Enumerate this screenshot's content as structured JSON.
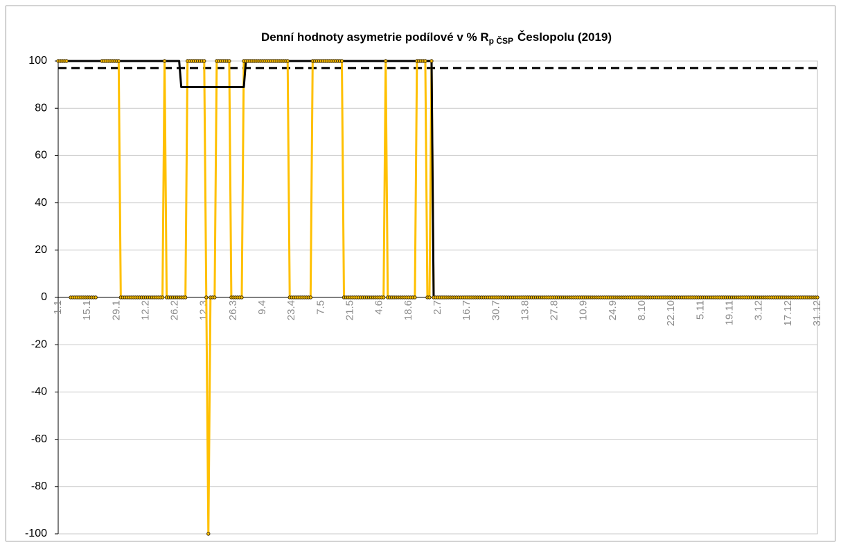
{
  "chart_data": {
    "type": "line",
    "title": "Denní hodnoty asymetrie podílové v % R",
    "title_subscript": "p ČSP",
    "title_suffix": "Česlopolu (2019)",
    "categories": [
      "1.1",
      null,
      null,
      null,
      null,
      null,
      null,
      null,
      null,
      null,
      null,
      null,
      null,
      null,
      "15.1",
      null,
      null,
      null,
      null,
      null,
      null,
      null,
      null,
      null,
      null,
      null,
      null,
      null,
      "29.1",
      null,
      null,
      null,
      null,
      null,
      null,
      null,
      null,
      null,
      null,
      null,
      null,
      null,
      "12.2",
      null,
      null,
      null,
      null,
      null,
      null,
      null,
      null,
      null,
      null,
      null,
      null,
      null,
      "26.2",
      null,
      null,
      null,
      null,
      null,
      null,
      null,
      null,
      null,
      null,
      null,
      null,
      null,
      "12.3",
      null,
      null,
      null,
      null,
      null,
      null,
      null,
      null,
      null,
      null,
      null,
      null,
      null,
      "26.3",
      null,
      null,
      null,
      null,
      null,
      null,
      null,
      null,
      null,
      null,
      null,
      null,
      null,
      "9.4",
      null,
      null,
      null,
      null,
      null,
      null,
      null,
      null,
      null,
      null,
      null,
      null,
      null,
      "23.4",
      null,
      null,
      null,
      null,
      null,
      null,
      null,
      null,
      null,
      null,
      null,
      null,
      null,
      "7.5",
      null,
      null,
      null,
      null,
      null,
      null,
      null,
      null,
      null,
      null,
      null,
      null,
      null,
      "21.5",
      null,
      null,
      null,
      null,
      null,
      null,
      null,
      null,
      null,
      null,
      null,
      null,
      null,
      "4.6",
      null,
      null,
      null,
      null,
      null,
      null,
      null,
      null,
      null,
      null,
      null,
      null,
      null,
      "18.6",
      null,
      null,
      null,
      null,
      null,
      null,
      null,
      null,
      null,
      null,
      null,
      null,
      null,
      "2.7",
      null,
      null,
      null,
      null,
      null,
      null,
      null,
      null,
      null,
      null,
      null,
      null,
      null,
      "16.7",
      null,
      null,
      null,
      null,
      null,
      null,
      null,
      null,
      null,
      null,
      null,
      null,
      null,
      "30.7",
      null,
      null,
      null,
      null,
      null,
      null,
      null,
      null,
      null,
      null,
      null,
      null,
      null,
      "13.8",
      null,
      null,
      null,
      null,
      null,
      null,
      null,
      null,
      null,
      null,
      null,
      null,
      null,
      "27.8",
      null,
      null,
      null,
      null,
      null,
      null,
      null,
      null,
      null,
      null,
      null,
      null,
      null,
      "10.9",
      null,
      null,
      null,
      null,
      null,
      null,
      null,
      null,
      null,
      null,
      null,
      null,
      null,
      "24.9",
      null,
      null,
      null,
      null,
      null,
      null,
      null,
      null,
      null,
      null,
      null,
      null,
      null,
      "8.10",
      null,
      null,
      null,
      null,
      null,
      null,
      null,
      null,
      null,
      null,
      null,
      null,
      null,
      "22.10",
      null,
      null,
      null,
      null,
      null,
      null,
      null,
      null,
      null,
      null,
      null,
      null,
      null,
      "5.11",
      null,
      null,
      null,
      null,
      null,
      null,
      null,
      null,
      null,
      null,
      null,
      null,
      null,
      "19.11",
      null,
      null,
      null,
      null,
      null,
      null,
      null,
      null,
      null,
      null,
      null,
      null,
      null,
      "3.12",
      null,
      null,
      null,
      null,
      null,
      null,
      null,
      null,
      null,
      null,
      null,
      null,
      null,
      "17.12",
      null,
      null,
      null,
      null,
      null,
      null,
      null,
      null,
      null,
      null,
      null,
      null,
      null,
      "31.12"
    ],
    "series": [
      {
        "color": "#ffc000",
        "markers": true,
        "values": [
          100,
          100,
          100,
          100,
          100,
          null,
          0,
          0,
          0,
          0,
          0,
          0,
          0,
          0,
          0,
          0,
          0,
          0,
          0,
          null,
          null,
          100,
          100,
          100,
          100,
          100,
          100,
          100,
          100,
          100,
          0,
          0,
          0,
          0,
          0,
          0,
          0,
          0,
          0,
          0,
          0,
          0,
          0,
          0,
          0,
          0,
          0,
          0,
          0,
          0,
          0,
          100,
          0,
          0,
          0,
          0,
          0,
          0,
          0,
          0,
          0,
          0,
          100,
          100,
          100,
          100,
          100,
          100,
          100,
          100,
          100,
          0,
          -100,
          0,
          0,
          0,
          100,
          100,
          100,
          100,
          100,
          100,
          100,
          0,
          0,
          0,
          0,
          0,
          0,
          100,
          100,
          100,
          100,
          100,
          100,
          100,
          100,
          100,
          100,
          100,
          100,
          100,
          100,
          100,
          100,
          100,
          100,
          100,
          100,
          100,
          100,
          0,
          0,
          0,
          0,
          0,
          0,
          0,
          0,
          0,
          0,
          0,
          100,
          100,
          100,
          100,
          100,
          100,
          100,
          100,
          100,
          100,
          100,
          100,
          100,
          100,
          100,
          0,
          0,
          0,
          0,
          0,
          0,
          0,
          0,
          0,
          0,
          0,
          0,
          0,
          0,
          0,
          0,
          0,
          0,
          0,
          0,
          100,
          0,
          0,
          0,
          0,
          0,
          0,
          0,
          0,
          0,
          0,
          0,
          0,
          0,
          0,
          100,
          100,
          100,
          100,
          100,
          0,
          0,
          100,
          0,
          0,
          0,
          0,
          0,
          0,
          0,
          0,
          0,
          0,
          0,
          0,
          0,
          0,
          0,
          0,
          0,
          0,
          0,
          0,
          0,
          0,
          0,
          0,
          0,
          0,
          0,
          0,
          0,
          0,
          0,
          0,
          0,
          0,
          0,
          0,
          0,
          0,
          0,
          0,
          0,
          0,
          0,
          0,
          0,
          0,
          0,
          0,
          0,
          0,
          0,
          0,
          0,
          0,
          0,
          0,
          0,
          0,
          0,
          0,
          0,
          0,
          0,
          0,
          0,
          0,
          0,
          0,
          0,
          0,
          0,
          0,
          0,
          0,
          0,
          0,
          0,
          0,
          0,
          0,
          0,
          0,
          0,
          0,
          0,
          0,
          0,
          0,
          0,
          0,
          0,
          0,
          0,
          0,
          0,
          0,
          0,
          0,
          0,
          0,
          0,
          0,
          0,
          0,
          0,
          0,
          0,
          0,
          0,
          0,
          0,
          0,
          0,
          0,
          0,
          0,
          0,
          0,
          0,
          0,
          0,
          0,
          0,
          0,
          0,
          0,
          0,
          0,
          0,
          0,
          0,
          0,
          0,
          0,
          0,
          0,
          0,
          0,
          0,
          0,
          0,
          0,
          0,
          0,
          0,
          0,
          0,
          0,
          0,
          0,
          0,
          0,
          0,
          0,
          0,
          0,
          0,
          0,
          0,
          0,
          0,
          0,
          0,
          0,
          0,
          0,
          0,
          0,
          0,
          0,
          0,
          0,
          0,
          0,
          0,
          0,
          0,
          0,
          0,
          0,
          0,
          0,
          0,
          0,
          0
        ]
      },
      {
        "color": "#000000",
        "markers": false,
        "values": [
          100,
          100,
          100,
          100,
          100,
          100,
          100,
          100,
          100,
          100,
          100,
          100,
          100,
          100,
          100,
          100,
          100,
          100,
          100,
          100,
          100,
          100,
          100,
          100,
          100,
          100,
          100,
          100,
          100,
          100,
          100,
          100,
          100,
          100,
          100,
          100,
          100,
          100,
          100,
          100,
          100,
          100,
          100,
          100,
          100,
          100,
          100,
          100,
          100,
          100,
          100,
          100,
          100,
          100,
          100,
          100,
          100,
          100,
          100,
          89,
          89,
          89,
          89,
          89,
          89,
          89,
          89,
          89,
          89,
          89,
          89,
          89,
          89,
          89,
          89,
          89,
          89,
          89,
          89,
          89,
          89,
          89,
          89,
          89,
          89,
          89,
          89,
          89,
          89,
          89,
          100,
          100,
          100,
          100,
          100,
          100,
          100,
          100,
          100,
          100,
          100,
          100,
          100,
          100,
          100,
          100,
          100,
          100,
          100,
          100,
          100,
          100,
          100,
          100,
          100,
          100,
          100,
          100,
          100,
          100,
          100,
          100,
          100,
          100,
          100,
          100,
          100,
          100,
          100,
          100,
          100,
          100,
          100,
          100,
          100,
          100,
          100,
          100,
          100,
          100,
          100,
          100,
          100,
          100,
          100,
          100,
          100,
          100,
          100,
          100,
          100,
          100,
          100,
          100,
          100,
          100,
          100,
          100,
          100,
          100,
          100,
          100,
          100,
          100,
          100,
          100,
          100,
          100,
          100,
          100,
          100,
          100,
          100,
          100,
          100,
          100,
          100,
          100,
          100,
          100,
          0,
          0,
          0,
          0,
          0,
          0,
          0,
          0,
          0,
          0,
          0,
          0,
          0,
          0,
          0,
          0,
          0,
          0,
          0,
          0,
          0,
          0,
          0,
          0,
          0,
          0,
          0,
          0,
          0,
          0,
          0,
          0,
          0,
          0,
          0,
          0,
          0,
          0,
          0,
          0,
          0,
          0,
          0,
          0,
          0,
          0,
          0,
          0,
          0,
          0,
          0,
          0,
          0,
          0,
          0,
          0,
          0,
          0,
          0,
          0,
          0,
          0,
          0,
          0,
          0,
          0,
          0,
          0,
          0,
          0,
          0,
          0,
          0,
          0,
          0,
          0,
          0,
          0,
          0,
          0,
          0,
          0,
          0,
          0,
          0,
          0,
          0,
          0,
          0,
          0,
          0,
          0,
          0,
          0,
          0,
          0,
          0,
          0,
          0,
          0,
          0,
          0,
          0,
          0,
          0,
          0,
          0,
          0,
          0,
          0,
          0,
          0,
          0,
          0,
          0,
          0,
          0,
          0,
          0,
          0,
          0,
          0,
          0,
          0,
          0,
          0,
          0,
          0,
          0,
          0,
          0,
          0,
          0,
          0,
          0,
          0,
          0,
          0,
          0,
          0,
          0,
          0,
          0,
          0,
          0,
          0,
          0,
          0,
          0,
          0,
          0,
          0,
          0,
          0,
          0,
          0,
          0,
          0,
          0,
          0,
          0,
          0,
          0,
          0,
          0,
          0,
          0,
          0,
          0,
          0,
          0,
          0,
          0,
          0,
          0,
          0,
          0,
          0,
          0,
          0,
          0,
          0,
          0,
          0,
          0
        ]
      }
    ],
    "reference_lines": [
      {
        "value": 97,
        "color": "#000000",
        "dashed": true
      }
    ],
    "ylim": [
      -100,
      100
    ],
    "yticks": [
      -100,
      -80,
      -60,
      -40,
      -20,
      0,
      20,
      40,
      60,
      80,
      100
    ],
    "grid": true
  }
}
